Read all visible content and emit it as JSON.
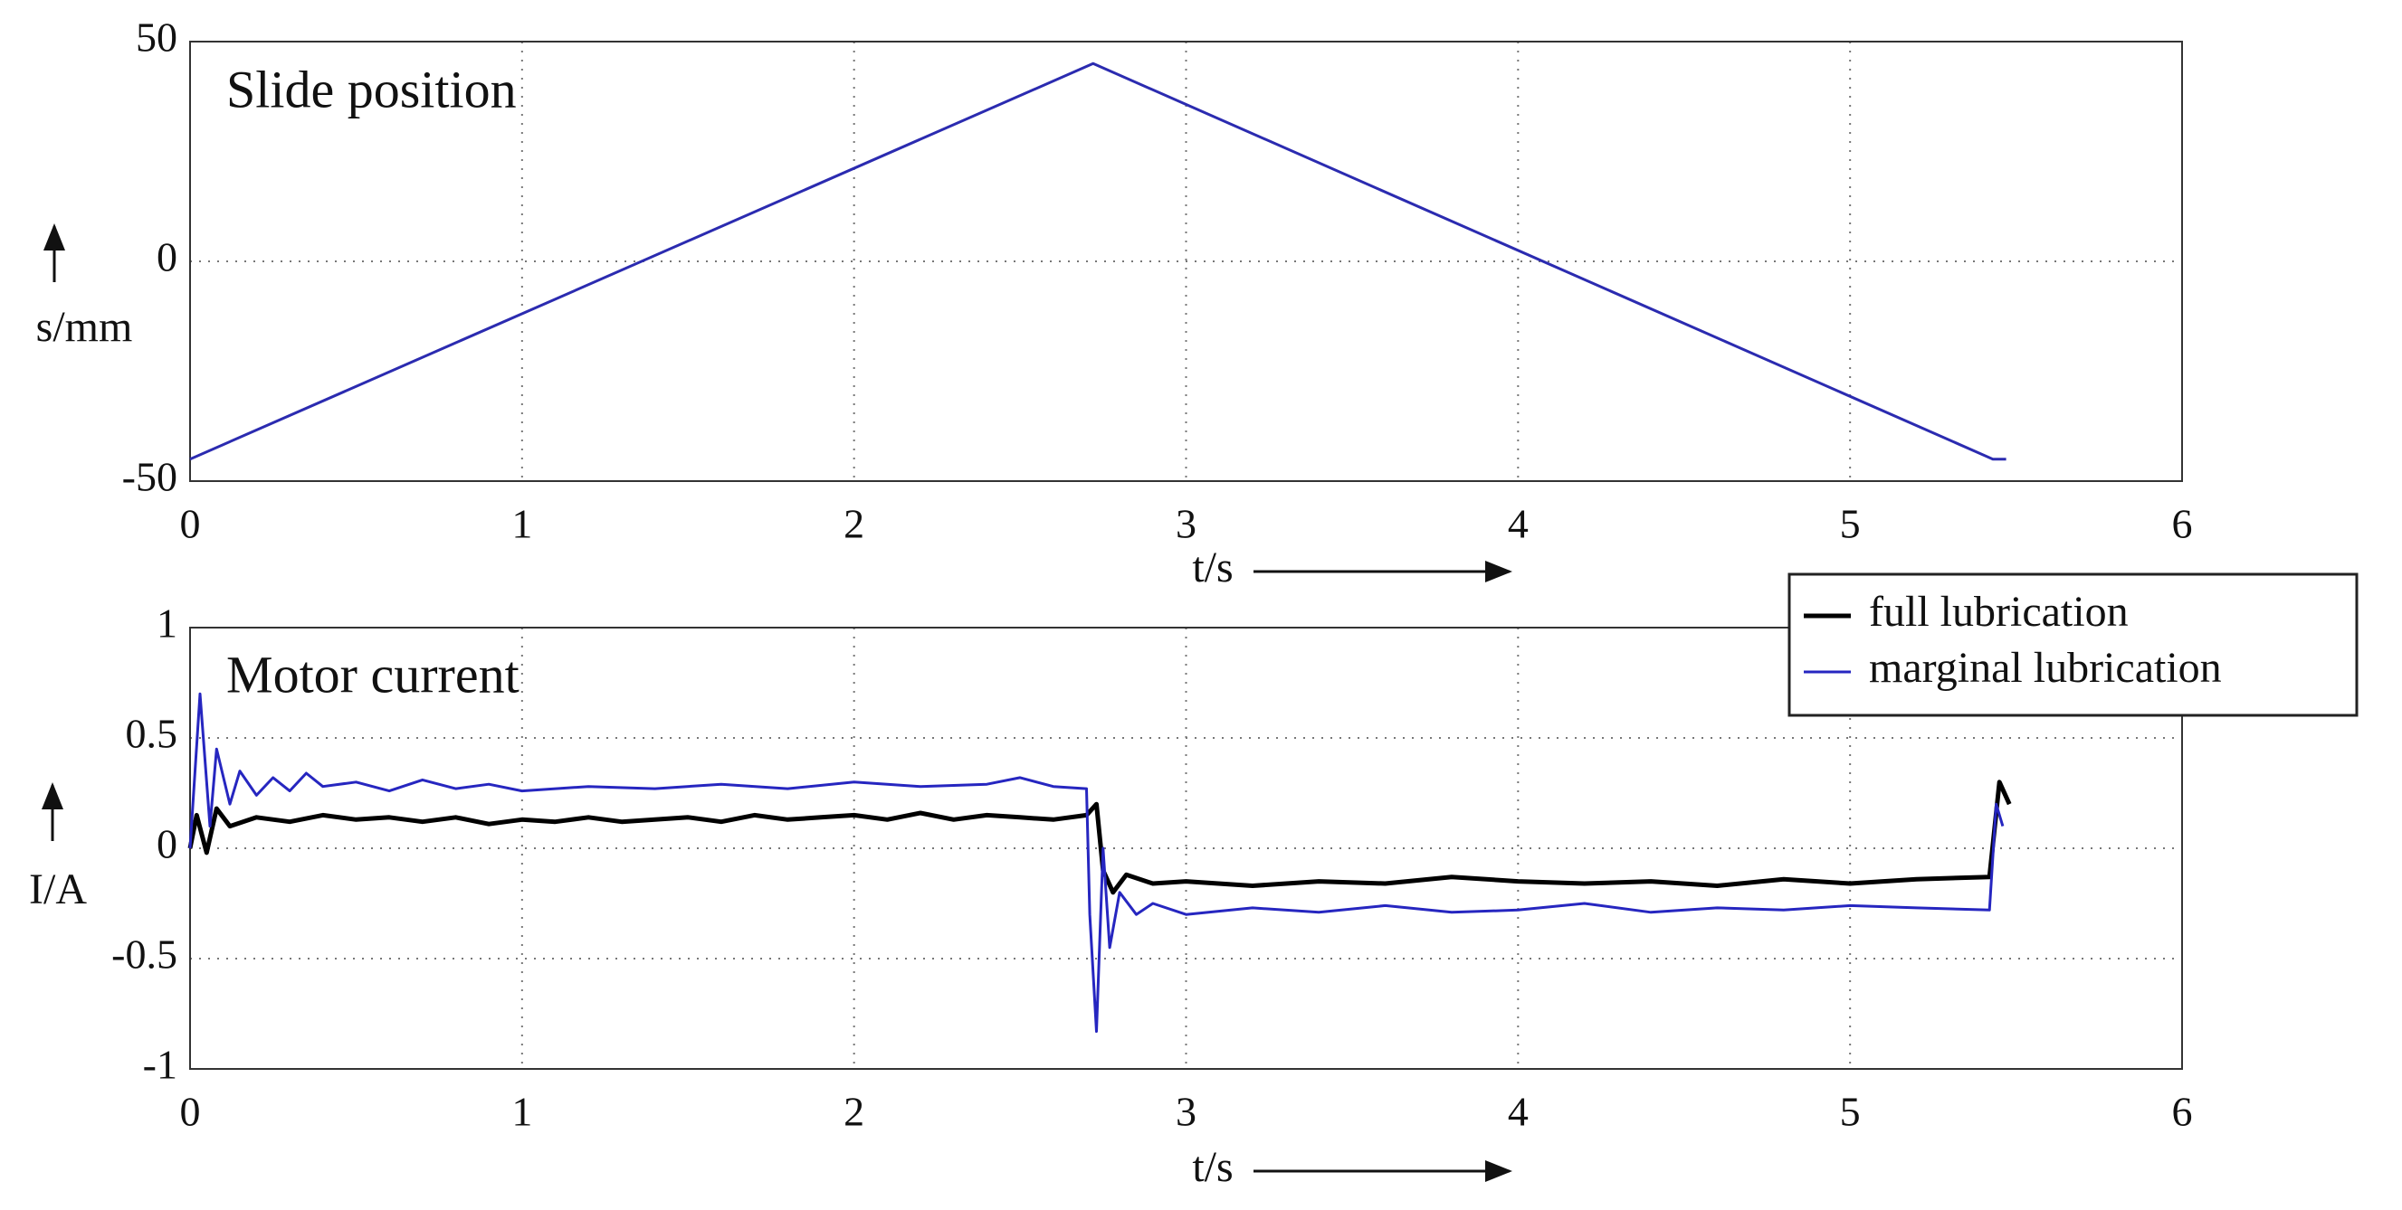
{
  "chart_data": [
    {
      "type": "line",
      "title": "Slide position",
      "xlabel": "t/s",
      "ylabel": "s/mm",
      "xlim": [
        0,
        6
      ],
      "xticks": [
        0,
        1,
        2,
        3,
        4,
        5,
        6
      ],
      "ylim": [
        -50,
        50
      ],
      "yticks": [
        -50,
        0,
        50
      ],
      "grid": true,
      "series": [
        {
          "color": "#2b2bb0",
          "width": 3,
          "x": [
            0,
            2.72,
            5.43,
            5.47
          ],
          "values": [
            -45,
            45,
            -45,
            -45
          ]
        }
      ]
    },
    {
      "type": "line",
      "title": "Motor current",
      "xlabel": "t/s",
      "ylabel": "I/A",
      "xlim": [
        0,
        6
      ],
      "xticks": [
        0,
        1,
        2,
        3,
        4,
        5,
        6
      ],
      "ylim": [
        -1,
        1
      ],
      "yticks": [
        -1,
        -0.5,
        0,
        0.5,
        1
      ],
      "grid": true,
      "legend": "upper right",
      "series": [
        {
          "name": "full lubrication",
          "color": "#000000",
          "width": 5,
          "x": [
            0,
            0.02,
            0.05,
            0.08,
            0.12,
            0.2,
            0.3,
            0.4,
            0.5,
            0.6,
            0.7,
            0.8,
            0.9,
            1.0,
            1.1,
            1.2,
            1.3,
            1.4,
            1.5,
            1.6,
            1.7,
            1.8,
            1.9,
            2.0,
            2.1,
            2.2,
            2.3,
            2.4,
            2.5,
            2.6,
            2.7,
            2.73,
            2.75,
            2.78,
            2.82,
            2.9,
            3.0,
            3.2,
            3.4,
            3.6,
            3.8,
            4.0,
            4.2,
            4.4,
            4.6,
            4.8,
            5.0,
            5.2,
            5.42,
            5.45,
            5.48
          ],
          "values": [
            0,
            0.15,
            -0.02,
            0.18,
            0.1,
            0.14,
            0.12,
            0.15,
            0.13,
            0.14,
            0.12,
            0.14,
            0.11,
            0.13,
            0.12,
            0.14,
            0.12,
            0.13,
            0.14,
            0.12,
            0.15,
            0.13,
            0.14,
            0.15,
            0.13,
            0.16,
            0.13,
            0.15,
            0.14,
            0.13,
            0.15,
            0.2,
            -0.1,
            -0.2,
            -0.12,
            -0.16,
            -0.15,
            -0.17,
            -0.15,
            -0.16,
            -0.13,
            -0.15,
            -0.16,
            -0.15,
            -0.17,
            -0.14,
            -0.16,
            -0.14,
            -0.13,
            0.3,
            0.2
          ]
        },
        {
          "name": "marginal lubrication",
          "color": "#2626c0",
          "width": 3,
          "x": [
            0,
            0.03,
            0.06,
            0.08,
            0.12,
            0.15,
            0.2,
            0.25,
            0.3,
            0.35,
            0.4,
            0.5,
            0.6,
            0.7,
            0.8,
            0.9,
            1.0,
            1.2,
            1.4,
            1.6,
            1.8,
            2.0,
            2.2,
            2.4,
            2.5,
            2.6,
            2.7,
            2.71,
            2.73,
            2.75,
            2.77,
            2.8,
            2.85,
            2.9,
            3.0,
            3.2,
            3.4,
            3.6,
            3.8,
            4.0,
            4.2,
            4.4,
            4.6,
            4.8,
            5.0,
            5.2,
            5.42,
            5.44,
            5.46
          ],
          "values": [
            0,
            0.7,
            0.1,
            0.45,
            0.2,
            0.35,
            0.24,
            0.32,
            0.26,
            0.34,
            0.28,
            0.3,
            0.26,
            0.31,
            0.27,
            0.29,
            0.26,
            0.28,
            0.27,
            0.29,
            0.27,
            0.3,
            0.28,
            0.29,
            0.32,
            0.28,
            0.27,
            -0.3,
            -0.83,
            0,
            -0.45,
            -0.2,
            -0.3,
            -0.25,
            -0.3,
            -0.27,
            -0.29,
            -0.26,
            -0.29,
            -0.28,
            -0.25,
            -0.29,
            -0.27,
            -0.28,
            -0.26,
            -0.27,
            -0.28,
            0.2,
            0.1
          ]
        }
      ]
    }
  ]
}
